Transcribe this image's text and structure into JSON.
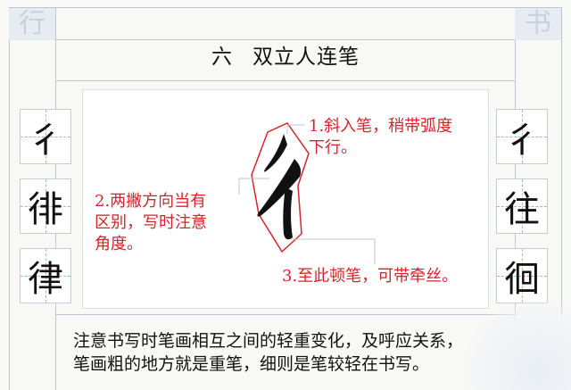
{
  "corners": {
    "left": "行",
    "right": "书"
  },
  "title": {
    "number": "六",
    "text": "双立人连笔"
  },
  "left_chars": [
    "彳",
    "徘",
    "律"
  ],
  "right_chars": [
    "彳",
    "往",
    "徊"
  ],
  "notes": {
    "n1_line1": "1.斜入笔，稍带弧度",
    "n1_line2": "下行。",
    "n2_line1": "2.两撇方向当有",
    "n2_line2": "区别，写时注意",
    "n2_line3": "角度。",
    "n3": "3.至此顿笔，可带牵丝。"
  },
  "bottom": {
    "line1": "注意书写时笔画相互之间的轻重变化，及呼应关系，",
    "line2": "笔画粗的地方就是重笔，细则是笔较轻在书写。"
  },
  "colors": {
    "accent_red": "#d8232a",
    "frame_blue": "#b9c7d7"
  }
}
